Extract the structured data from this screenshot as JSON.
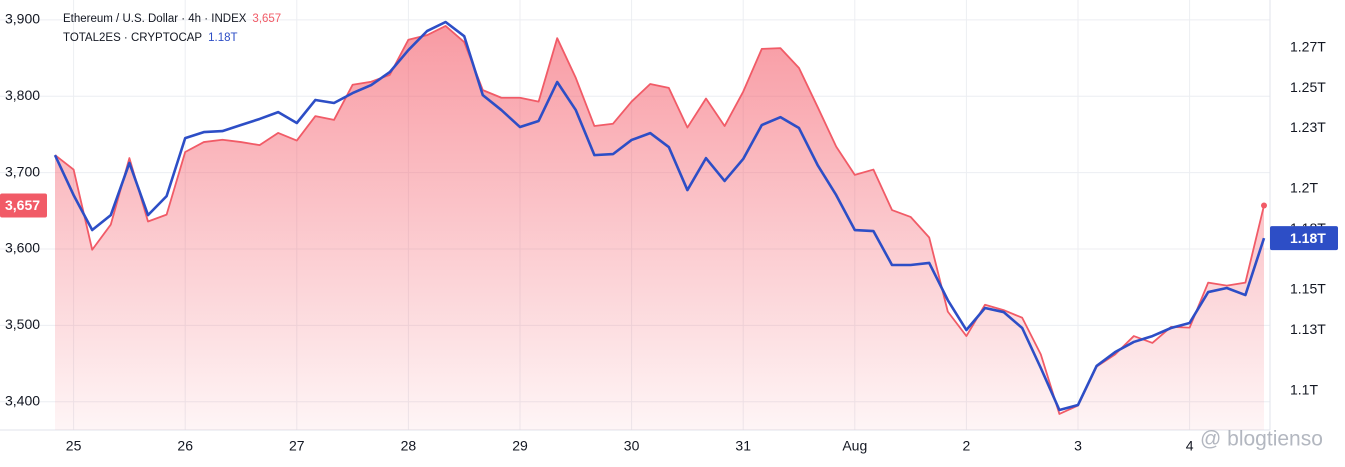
{
  "chart_data": {
    "type": "line",
    "categories": [
      null,
      "25",
      null,
      null,
      null,
      null,
      null,
      "26",
      null,
      null,
      null,
      null,
      null,
      "27",
      null,
      null,
      null,
      null,
      null,
      "28",
      null,
      null,
      null,
      null,
      null,
      "29",
      null,
      null,
      null,
      null,
      null,
      "30",
      null,
      null,
      null,
      null,
      null,
      "31",
      null,
      null,
      null,
      null,
      null,
      "Aug",
      null,
      null,
      null,
      null,
      null,
      "2",
      null,
      null,
      null,
      null,
      null,
      "3",
      null,
      null,
      null,
      null,
      null,
      "4",
      null,
      null,
      null,
      null
    ],
    "series": [
      {
        "name": "Ethereum / U.S. Dollar · 4h · INDEX",
        "color": "#f15b67",
        "area": true,
        "values": [
          3723,
          3704,
          3599,
          3632,
          3719,
          3636,
          3645,
          3727,
          3740,
          3743,
          3740,
          3736,
          3752,
          3742,
          3774,
          3769,
          3815,
          3819,
          3828,
          3874,
          3880,
          3892,
          3871,
          3808,
          3798,
          3798,
          3793,
          3876,
          3824,
          3761,
          3764,
          3793,
          3816,
          3811,
          3759,
          3797,
          3761,
          3806,
          3862,
          3863,
          3837,
          3786,
          3734,
          3697,
          3704,
          3651,
          3642,
          3615,
          3518,
          3486,
          3527,
          3520,
          3510,
          3462,
          3384,
          3395,
          3446,
          3462,
          3486,
          3477,
          3498,
          3497,
          3556,
          3552,
          3556,
          3657
        ],
        "value_labels": [
          null,
          null,
          null,
          null,
          null,
          null,
          null,
          null,
          null,
          null,
          null,
          null,
          null,
          null,
          null,
          null,
          null,
          null,
          null,
          null,
          null,
          null,
          null,
          null,
          null,
          null,
          null,
          null,
          null,
          null,
          null,
          null,
          null,
          null,
          null,
          null,
          null,
          null,
          null,
          null,
          null,
          null,
          null,
          null,
          null,
          null,
          null,
          null,
          null,
          null,
          null,
          null,
          null,
          null,
          null,
          null,
          null,
          null,
          null,
          null,
          null,
          null,
          null,
          null,
          null,
          "3,657"
        ]
      },
      {
        "name": "TOTAL2ES · CRYPTOCAP",
        "color": "#2d4ec6",
        "axis": "y2",
        "values": [
          1.2168,
          1.197,
          1.1797,
          1.1871,
          1.2129,
          1.1871,
          1.1965,
          1.2252,
          1.2282,
          1.2287,
          1.2317,
          1.2347,
          1.2381,
          1.2327,
          1.2441,
          1.2426,
          1.2475,
          1.2515,
          1.2579,
          1.2688,
          1.2782,
          1.2827,
          1.2757,
          1.2465,
          1.2391,
          1.2307,
          1.2337,
          1.253,
          1.2391,
          1.2168,
          1.2173,
          1.2243,
          1.2277,
          1.2208,
          1.1995,
          1.2153,
          1.204,
          1.2149,
          1.2317,
          1.2356,
          1.2302,
          1.2119,
          1.197,
          1.1797,
          1.1792,
          1.1624,
          1.1624,
          1.1634,
          1.145,
          1.1302,
          1.1411,
          1.1391,
          1.1312,
          1.1114,
          1.0906,
          1.0931,
          1.1124,
          1.1193,
          1.1243,
          1.1272,
          1.1312,
          1.1337,
          1.149,
          1.151,
          1.1475,
          1.1757
        ],
        "value_labels": [
          null,
          null,
          null,
          null,
          null,
          null,
          null,
          null,
          null,
          null,
          null,
          null,
          null,
          null,
          null,
          null,
          null,
          null,
          null,
          null,
          null,
          null,
          null,
          null,
          null,
          null,
          null,
          null,
          null,
          null,
          null,
          null,
          null,
          null,
          null,
          null,
          null,
          null,
          null,
          null,
          null,
          null,
          null,
          null,
          null,
          null,
          null,
          null,
          null,
          null,
          null,
          null,
          null,
          null,
          null,
          null,
          null,
          null,
          null,
          null,
          null,
          null,
          null,
          null,
          null,
          "1.18T"
        ]
      }
    ],
    "ylim": [
      3363,
      3926
    ],
    "yticks": [
      {
        "value": 3400,
        "label": "3,400"
      },
      {
        "value": 3500,
        "label": "3,500"
      },
      {
        "value": 3600,
        "label": "3,600"
      },
      {
        "value": 3700,
        "label": "3,700"
      },
      {
        "value": 3800,
        "label": "3,800"
      },
      {
        "value": 3900,
        "label": "3,900"
      }
    ],
    "y2lim": [
      1.0807,
      1.2936
    ],
    "y2ticks": [
      {
        "value": 1.1,
        "label": "1.1T"
      },
      {
        "value": 1.13,
        "label": "1.13T"
      },
      {
        "value": 1.15,
        "label": "1.15T"
      },
      {
        "value": 1.18,
        "label": "1.18T"
      },
      {
        "value": 1.2,
        "label": "1.2T"
      },
      {
        "value": 1.23,
        "label": "1.23T"
      },
      {
        "value": 1.25,
        "label": "1.25T"
      },
      {
        "value": 1.27,
        "label": "1.27T"
      }
    ],
    "grid": true,
    "watermark": "@ blogtienso"
  }
}
